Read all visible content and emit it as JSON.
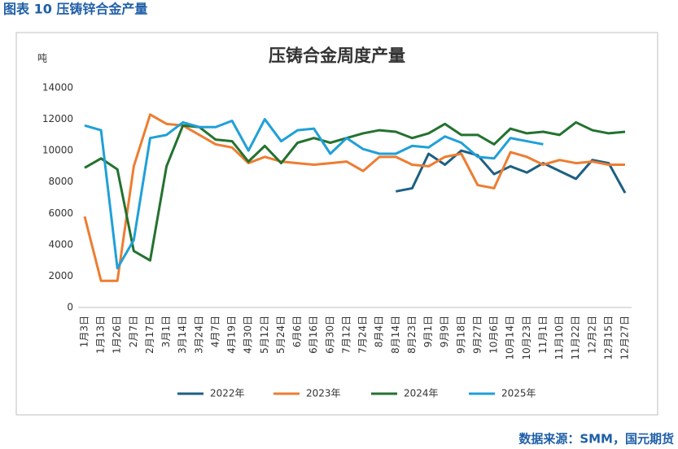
{
  "caption": "图表 10 压铸锌合金产量",
  "source": "数据来源：SMM，国元期货",
  "chart_data": {
    "type": "line",
    "title": "压铸合金周度产量",
    "y_label": "吨",
    "categories": [
      "1月3日",
      "1月13日",
      "1月26日",
      "2月7日",
      "2月17日",
      "3月1日",
      "3月14日",
      "3月24日",
      "4月7日",
      "4月19日",
      "4月30日",
      "5月12日",
      "5月24日",
      "6月6日",
      "6月16日",
      "6月30日",
      "7月12日",
      "7月24日",
      "8月4日",
      "8月14日",
      "8月23日",
      "9月1日",
      "9月9日",
      "9月18日",
      "9月27日",
      "10月6日",
      "10月14日",
      "10月23日",
      "11月1日",
      "11月10日",
      "11月22日",
      "12月2日",
      "12月15日",
      "12月27日"
    ],
    "series": [
      {
        "name": "2022年",
        "color": "#1d5f82",
        "values": [
          null,
          null,
          null,
          null,
          null,
          null,
          null,
          null,
          null,
          null,
          null,
          null,
          null,
          null,
          null,
          null,
          null,
          null,
          null,
          7400,
          7600,
          9800,
          9100,
          10000,
          9700,
          8500,
          9000,
          8600,
          9200,
          8700,
          8200,
          9400,
          9200,
          7300
        ]
      },
      {
        "name": "2023年",
        "color": "#ed7d31",
        "values": [
          5800,
          1700,
          1700,
          9000,
          12300,
          11700,
          11600,
          11000,
          10400,
          10200,
          9200,
          9600,
          9300,
          9200,
          9100,
          9200,
          9300,
          8700,
          9600,
          9600,
          9100,
          9000,
          9600,
          9800,
          7800,
          7600,
          9900,
          9600,
          9100,
          9400,
          9200,
          9300,
          9100,
          9100
        ]
      },
      {
        "name": "2024年",
        "color": "#23722f",
        "values": [
          8900,
          9500,
          8800,
          3600,
          3000,
          9000,
          11600,
          11500,
          10700,
          10600,
          9300,
          10300,
          9200,
          10500,
          10800,
          10500,
          10800,
          11100,
          11300,
          11200,
          10800,
          11100,
          11700,
          11000,
          11000,
          10400,
          11400,
          11100,
          11200,
          11000,
          11800,
          11300,
          11100,
          11200
        ]
      },
      {
        "name": "2025年",
        "color": "#1fa0d8",
        "values": [
          11600,
          11300,
          2500,
          4300,
          10800,
          11000,
          11800,
          11500,
          11500,
          11900,
          10000,
          12000,
          10600,
          11300,
          11400,
          9800,
          10800,
          10100,
          9800,
          9800,
          10300,
          10200,
          10900,
          10500,
          9600,
          9500,
          10800,
          10600,
          10400,
          null,
          null,
          null,
          null,
          null
        ]
      }
    ],
    "ylim": [
      0,
      14000
    ],
    "yticks": [
      0,
      2000,
      4000,
      6000,
      8000,
      10000,
      12000,
      14000
    ],
    "grid": false,
    "legend": "bottom"
  }
}
